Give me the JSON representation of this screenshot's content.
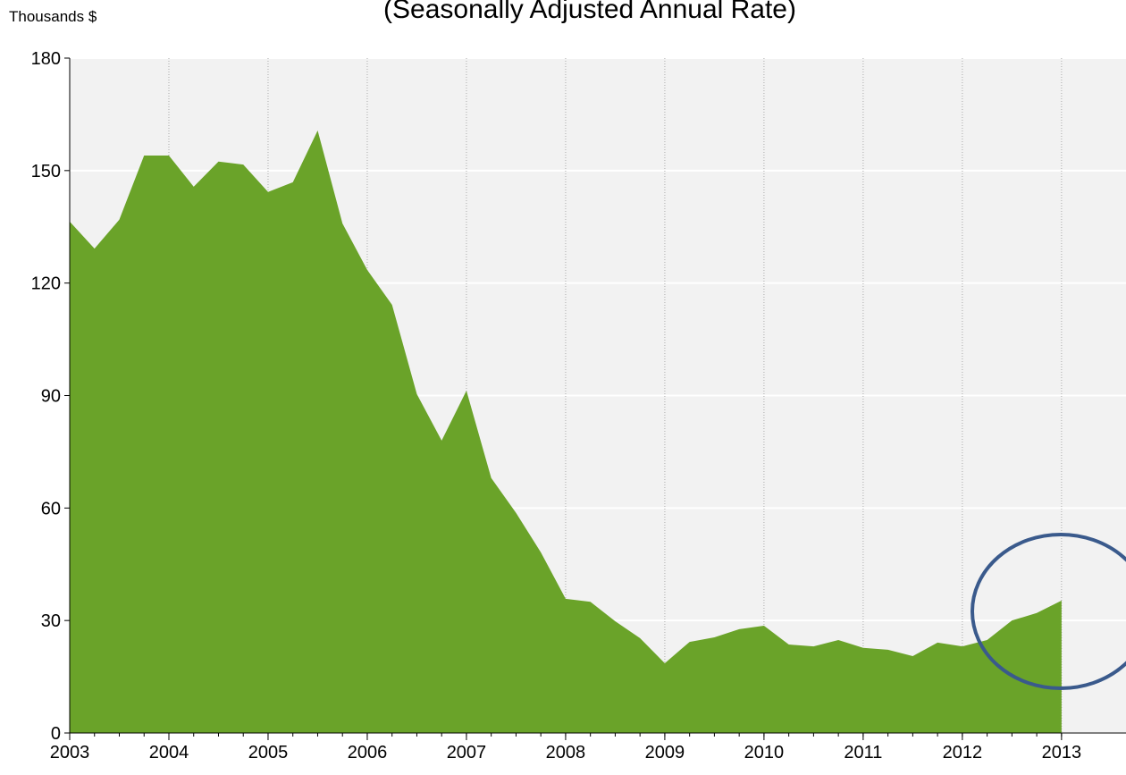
{
  "chart_data": {
    "type": "area",
    "subtitle": "(Seasonally Adjusted Annual Rate)",
    "y_label": "Thousands $",
    "color": "#6aa329",
    "background": "#f2f2f2",
    "grid": true,
    "x": [
      2003,
      2003.25,
      2003.5,
      2003.75,
      2004,
      2004.25,
      2004.5,
      2004.75,
      2005,
      2005.25,
      2005.5,
      2005.75,
      2006,
      2006.25,
      2006.5,
      2006.75,
      2007,
      2007.25,
      2007.5,
      2007.75,
      2008,
      2008.25,
      2008.5,
      2008.75,
      2009,
      2009.25,
      2009.5,
      2009.75,
      2010,
      2010.25,
      2010.5,
      2010.75,
      2011,
      2011.25,
      2011.5,
      2011.75,
      2012,
      2012.25,
      2012.5,
      2012.75,
      2013
    ],
    "values": [
      136.4,
      129.2,
      136.9,
      154,
      154,
      145.7,
      152.4,
      151.6,
      144.3,
      146.9,
      160.7,
      135.9,
      123.5,
      114.2,
      90.4,
      78,
      91.3,
      68,
      58.7,
      48.2,
      35.8,
      35,
      29.8,
      25.3,
      18.6,
      24.3,
      25.5,
      27.7,
      28.6,
      23.6,
      23.1,
      24.8,
      22.7,
      22.2,
      20.5,
      24.1,
      23.1,
      24.8,
      30,
      32,
      35.3
    ],
    "xlim": [
      2003,
      2013.65
    ],
    "xticks": [
      2003,
      2004,
      2005,
      2006,
      2007,
      2008,
      2009,
      2010,
      2011,
      2012,
      2013
    ],
    "ylim": [
      0,
      180
    ],
    "yticks": [
      0,
      30,
      60,
      90,
      120,
      150,
      180
    ]
  }
}
